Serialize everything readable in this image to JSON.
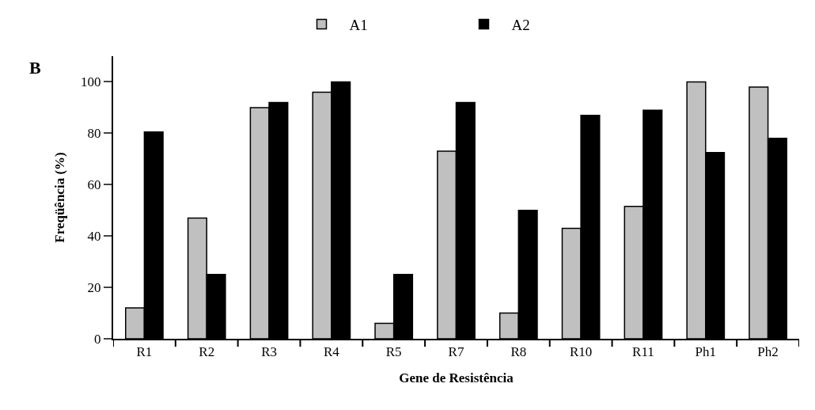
{
  "chart_data": {
    "type": "bar",
    "xlabel": "Gene de Resistência",
    "ylabel": "Freqüência (%)",
    "annotations": [
      "B"
    ],
    "categories": [
      "R1",
      "R2",
      "R3",
      "R4",
      "R5",
      "R7",
      "R8",
      "R10",
      "R11",
      "Ph1",
      "Ph2"
    ],
    "series": [
      {
        "name": "A1",
        "color": "#c0c0c0",
        "values": [
          12,
          47,
          90,
          96,
          6,
          73,
          10,
          43,
          51.5,
          100,
          98
        ]
      },
      {
        "name": "A2",
        "color": "#000000",
        "values": [
          80.5,
          25,
          92,
          100,
          25,
          92,
          50,
          87,
          89,
          72.5,
          78
        ]
      }
    ],
    "ylim": [
      0,
      110
    ],
    "yticks": [
      0,
      20,
      40,
      60,
      80,
      100
    ],
    "grid": false,
    "legend": "top"
  }
}
